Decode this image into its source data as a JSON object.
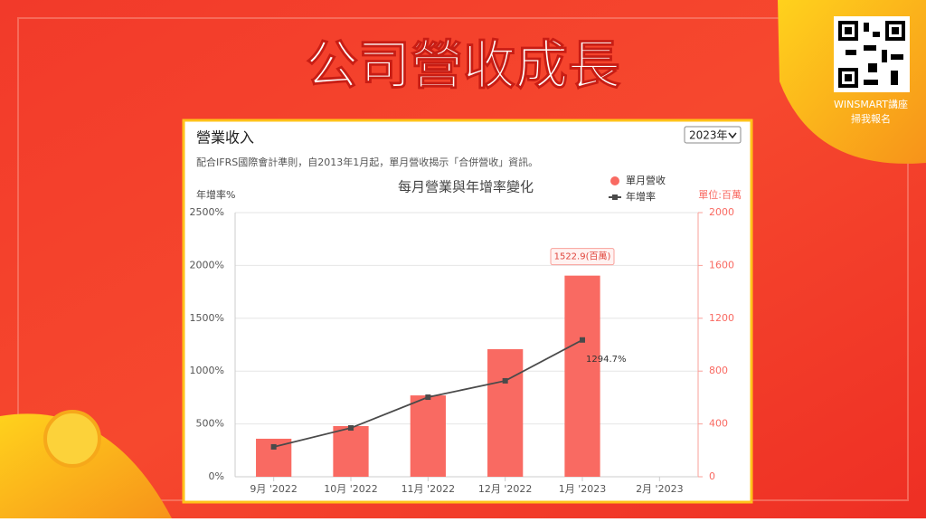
{
  "banner_title": "公司營收成長",
  "qr_caption": [
    "WINSMART講座",
    "掃我報名"
  ],
  "panel": {
    "title": "營業收入",
    "year_select": "2023年",
    "note": "配合IFRS國際會計準則，自2013年1月起，單月營收揭示「合併營收」資訊。"
  },
  "chart_data": {
    "type": "bar-line",
    "title": "每月營業與年增率變化",
    "y_label": "年增率%",
    "y2_label": "單位:百萬",
    "categories": [
      "9月 '2022",
      "10月 '2022",
      "11月 '2022",
      "12月 '2022",
      "1月 '2023",
      "2月 '2023"
    ],
    "series": [
      {
        "name": "單月營收",
        "type": "bar",
        "axis": "y2",
        "color": "#f96a62",
        "values": [
          288,
          384,
          616,
          966,
          1522.9,
          null
        ],
        "value_labels": [
          null,
          null,
          null,
          null,
          "1522.9(百萬)",
          null
        ]
      },
      {
        "name": "年增率",
        "type": "line",
        "color": "#4a4a4a",
        "values": [
          283,
          462,
          753,
          908,
          1294.7,
          null
        ],
        "value_labels": [
          null,
          null,
          null,
          null,
          "1294.7%",
          null
        ]
      }
    ],
    "ylim": [
      0,
      2500
    ],
    "yticks": [
      {
        "value": 0,
        "label": "0%"
      },
      {
        "value": 500,
        "label": "500%"
      },
      {
        "value": 1000,
        "label": "1000%"
      },
      {
        "value": 1500,
        "label": "1500%"
      },
      {
        "value": 2000,
        "label": "2000%"
      },
      {
        "value": 2500,
        "label": "2500%"
      }
    ],
    "y2lim": [
      0,
      2000
    ],
    "y2ticks": [
      0,
      400,
      800,
      1200,
      1600,
      2000
    ],
    "grid": true,
    "legend": "top-right"
  }
}
